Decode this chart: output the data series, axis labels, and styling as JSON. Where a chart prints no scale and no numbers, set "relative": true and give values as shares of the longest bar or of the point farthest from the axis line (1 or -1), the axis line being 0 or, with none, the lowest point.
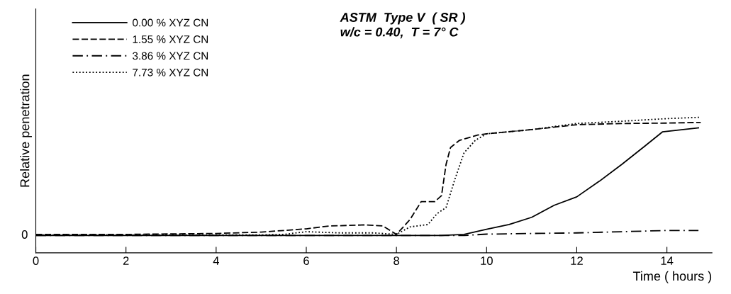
{
  "chart_data": {
    "type": "line",
    "title": "ASTM  Type V  ( SR )",
    "subtitle": "w/c = 0.40,  T = 7° C",
    "xlabel": "Time ( hours )",
    "ylabel": "Relative penetration",
    "relative": true,
    "annotations": [
      "0"
    ],
    "xlim": [
      0,
      15
    ],
    "xticks": [
      0,
      2,
      4,
      6,
      8,
      10,
      12,
      14
    ],
    "grid": false,
    "legend": "top left",
    "marker": "none",
    "series": [
      {
        "name": "0.00 % XYZ CN",
        "color": "#000000",
        "line_style": "solid",
        "x": [
          0,
          2,
          4,
          6,
          8,
          9,
          9.5,
          10,
          10.5,
          11,
          11.5,
          12,
          12.5,
          13,
          13.5,
          13.9,
          14.7
        ],
        "values": [
          0.128,
          0.128,
          0.128,
          0.128,
          0.128,
          0.128,
          0.136,
          0.174,
          0.209,
          0.262,
          0.351,
          0.413,
          0.528,
          0.653,
          0.785,
          0.892,
          0.922
        ]
      },
      {
        "name": "1.55 % XYZ CN",
        "color": "#000000",
        "line_style": "dashed",
        "x": [
          0,
          2,
          4,
          5,
          6,
          6.5,
          7.3,
          7.7,
          8,
          8.3,
          8.55,
          8.85,
          9,
          9.1,
          9.2,
          9.4,
          9.8,
          10,
          11,
          12,
          13,
          14,
          14.75
        ],
        "values": [
          0.136,
          0.136,
          0.143,
          0.153,
          0.177,
          0.198,
          0.206,
          0.198,
          0.136,
          0.245,
          0.378,
          0.378,
          0.422,
          0.651,
          0.777,
          0.83,
          0.869,
          0.878,
          0.909,
          0.945,
          0.954,
          0.957,
          0.962
        ]
      },
      {
        "name": "3.86 % XYZ CN",
        "color": "#000000",
        "line_style": "dashdot",
        "x": [
          0,
          2,
          4,
          6,
          8,
          9.5,
          10,
          11,
          12,
          13,
          14,
          14.7
        ],
        "values": [
          0.128,
          0.128,
          0.128,
          0.128,
          0.128,
          0.128,
          0.138,
          0.143,
          0.147,
          0.156,
          0.165,
          0.165
        ]
      },
      {
        "name": "7.73 % XYZ CN",
        "color": "#000000",
        "line_style": "dotted",
        "x": [
          0,
          2,
          4,
          5,
          5.5,
          6,
          6.75,
          7.5,
          8,
          8.3,
          8.7,
          8.9,
          9.1,
          9.3,
          9.5,
          9.75,
          10,
          11,
          12,
          13,
          14,
          14.75
        ],
        "values": [
          0.132,
          0.132,
          0.132,
          0.132,
          0.136,
          0.156,
          0.147,
          0.147,
          0.136,
          0.191,
          0.209,
          0.289,
          0.334,
          0.546,
          0.738,
          0.83,
          0.878,
          0.909,
          0.954,
          0.971,
          0.99,
          1.0
        ]
      }
    ]
  }
}
